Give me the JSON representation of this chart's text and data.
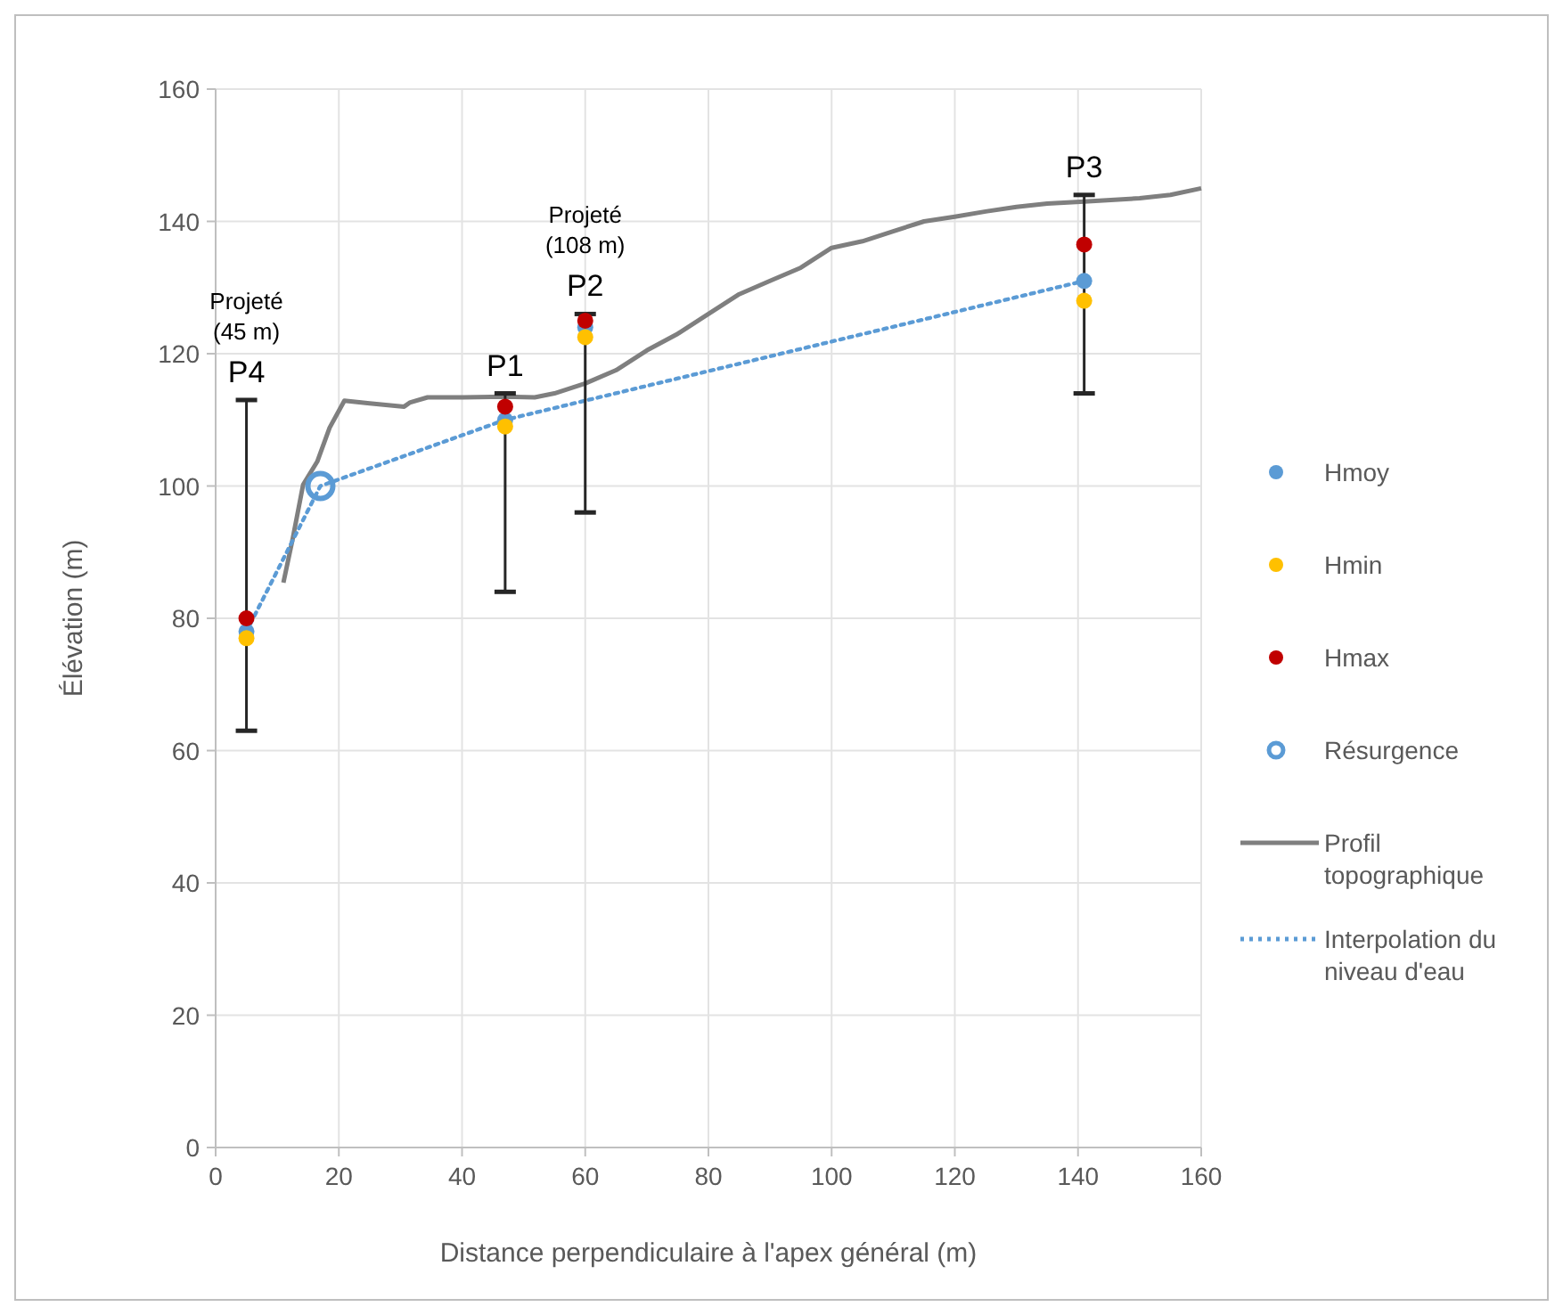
{
  "chart_data": {
    "type": "scatter",
    "xlabel": "Distance perpendiculaire à l'apex général (m)",
    "ylabel": "Élévation (m)",
    "xlim": [
      0,
      160
    ],
    "ylim": [
      0,
      160
    ],
    "xticks": [
      0,
      20,
      40,
      60,
      80,
      100,
      120,
      140,
      160
    ],
    "yticks": [
      0,
      20,
      40,
      60,
      80,
      100,
      120,
      140,
      160
    ],
    "grid": true,
    "legend": "right",
    "marker": "circle",
    "series": [
      {
        "name": "Hmoy",
        "color": "#5b9bd5",
        "x": [
          5,
          47,
          60,
          141
        ],
        "values": [
          78,
          110,
          124,
          131
        ],
        "errors": [
          [
            63,
            113
          ],
          [
            84,
            114
          ],
          [
            96,
            126
          ],
          [
            114,
            144
          ]
        ]
      },
      {
        "name": "Hmin",
        "color": "#ffc000",
        "x": [
          5,
          47,
          60,
          141
        ],
        "values": [
          77,
          109,
          122.5,
          128
        ]
      },
      {
        "name": "Hmax",
        "color": "#c00000",
        "x": [
          5,
          47,
          60,
          141
        ],
        "values": [
          80,
          112,
          125,
          136.5
        ]
      },
      {
        "name": "Résurgence",
        "color": "#5b9bd5",
        "x": [
          17
        ],
        "values": [
          100
        ]
      },
      {
        "name": "Profil topographique",
        "type": "line",
        "color": "#7f7f7f",
        "line_style": "solid",
        "marker": "none",
        "x": [
          11,
          12.5,
          14.2,
          16.5,
          18.5,
          20.9,
          25,
          30.6,
          31.5,
          34.4,
          40.2,
          47,
          51.8,
          55,
          60,
          65,
          70,
          75,
          80,
          85,
          90,
          95,
          100,
          105,
          110,
          115,
          120,
          125,
          130,
          135,
          141,
          150,
          155,
          160
        ],
        "values": [
          85.4,
          92,
          100.2,
          103.7,
          108.8,
          112.9,
          112.5,
          112,
          112.6,
          113.4,
          113.4,
          113.5,
          113.4,
          114,
          115.5,
          117.5,
          120.5,
          123,
          126,
          129,
          131,
          133,
          136,
          137,
          138.5,
          140,
          140.7,
          141.5,
          142.2,
          142.7,
          143,
          143.5,
          144,
          145
        ]
      },
      {
        "name": "Interpolation du niveau d'eau",
        "type": "line",
        "color": "#5b9bd5",
        "line_style": "dotted",
        "marker": "none",
        "x": [
          5,
          17,
          47,
          141
        ],
        "values": [
          78,
          100,
          110,
          131
        ]
      }
    ],
    "annotations": [
      {
        "text": "Projeté (45 m)",
        "x": 5,
        "y": 113
      },
      {
        "text": "P4",
        "x": 5,
        "y": 113
      },
      {
        "text": "P1",
        "x": 47,
        "y": 114
      },
      {
        "text": "Projeté (108 m)",
        "x": 60,
        "y": 126
      },
      {
        "text": "P2",
        "x": 60,
        "y": 126
      },
      {
        "text": "P3",
        "x": 141,
        "y": 144
      }
    ]
  }
}
